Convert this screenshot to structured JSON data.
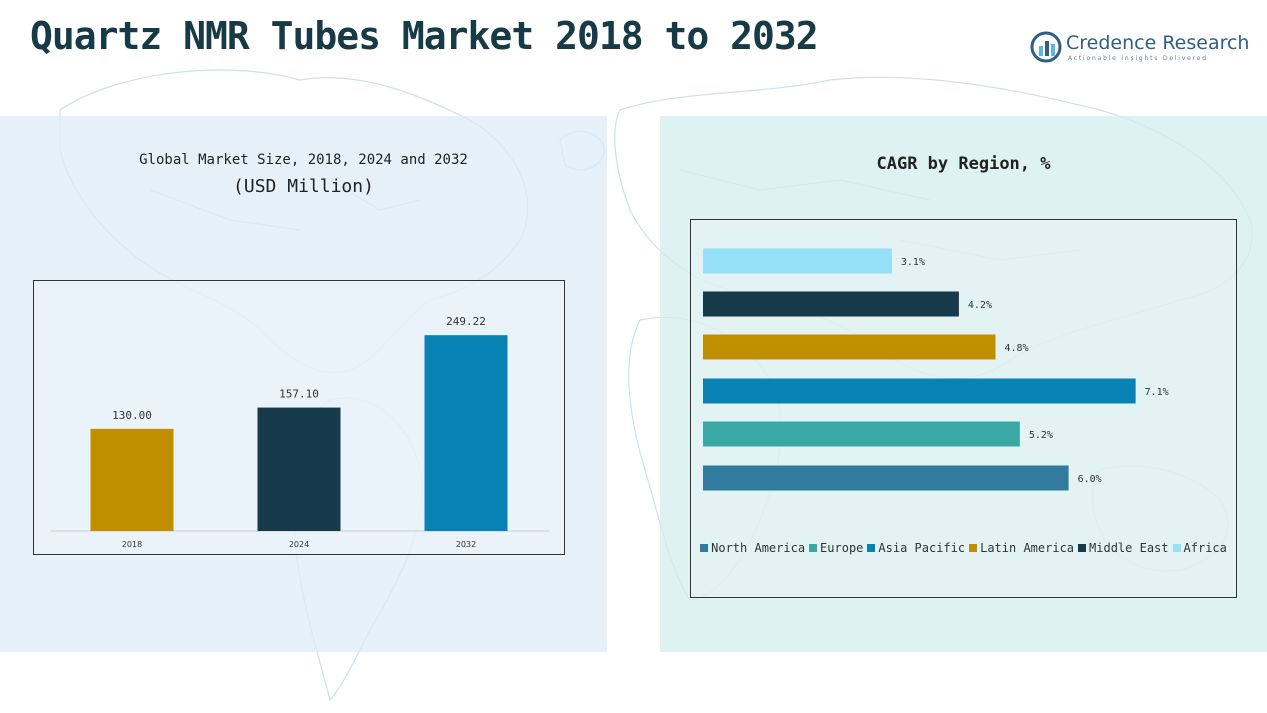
{
  "title": "Quartz NMR Tubes Market 2018 to 2032",
  "logo": {
    "name": "Credence Research",
    "tagline": "Actionable Insights Delivered",
    "color": "#2f5f86"
  },
  "left_panel": {
    "title": "Global Market Size, 2018, 2024 and 2032",
    "unit": "(USD Million)"
  },
  "right_panel": {
    "title": "CAGR by Region, %"
  },
  "chart_data": [
    {
      "type": "bar",
      "title": "Global Market Size, 2018, 2024 and 2032",
      "subtitle": "(USD Million)",
      "categories": [
        "2018",
        "2024",
        "2032"
      ],
      "values": [
        130.0,
        157.1,
        249.22
      ],
      "value_labels": [
        "130.00",
        "157.10",
        "249.22"
      ],
      "colors": [
        "#bf8f00",
        "#173a4a",
        "#0882b4"
      ],
      "ylim": [
        0,
        280
      ],
      "grid": false
    },
    {
      "type": "bar",
      "orientation": "horizontal",
      "title": "CAGR by Region, %",
      "categories": [
        "Africa",
        "Middle East",
        "Latin America",
        "Asia Pacific",
        "Europe",
        "North America"
      ],
      "values": [
        3.1,
        4.2,
        4.8,
        7.1,
        5.2,
        6.0
      ],
      "value_labels": [
        "3.1%",
        "4.2%",
        "4.8%",
        "7.1%",
        "5.2%",
        "6.0%"
      ],
      "colors": [
        "#95dff7",
        "#173a4a",
        "#bf8f00",
        "#0882b4",
        "#3aa8a4",
        "#317b9e"
      ],
      "xlim": [
        0,
        7.5
      ],
      "grid": false,
      "legend_position": "bottom",
      "legend": [
        {
          "name": "North America",
          "color": "#317b9e"
        },
        {
          "name": "Europe",
          "color": "#3aa8a4"
        },
        {
          "name": "Asia Pacific",
          "color": "#0882b4"
        },
        {
          "name": "Latin America",
          "color": "#bf8f00"
        },
        {
          "name": "Middle East",
          "color": "#173a4a"
        },
        {
          "name": "Africa",
          "color": "#95dff7"
        }
      ]
    }
  ]
}
